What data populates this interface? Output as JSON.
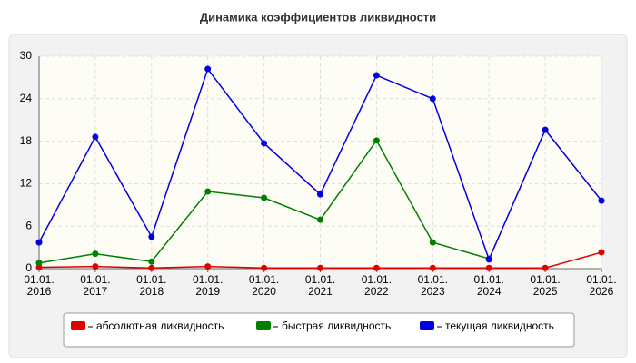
{
  "chart_data": {
    "type": "line",
    "title": "Динамика коэффициентов ликвидности",
    "categories": [
      "01.01. 2016",
      "01.01. 2017",
      "01.01. 2018",
      "01.01. 2019",
      "01.01. 2020",
      "01.01. 2021",
      "01.01. 2022",
      "01.01. 2023",
      "01.01. 2024",
      "01.01. 2025",
      "01.01. 2026"
    ],
    "series": [
      {
        "name": "абсолютная ликвидность",
        "color": "#e00000",
        "values": [
          0.2,
          0.3,
          0.1,
          0.3,
          0.1,
          0.1,
          0.1,
          0.1,
          0.1,
          0.1,
          2.3
        ]
      },
      {
        "name": "быстрая ликвидность",
        "color": "#008000",
        "values": [
          0.8,
          2.1,
          1.0,
          10.9,
          10.0,
          6.9,
          18.1,
          3.7,
          1.4,
          null,
          null
        ]
      },
      {
        "name": "текущая ликвидность",
        "color": "#0000e0",
        "values": [
          3.7,
          18.6,
          4.5,
          28.2,
          17.7,
          10.5,
          27.3,
          24.0,
          1.3,
          19.6,
          9.6
        ]
      }
    ],
    "ylim": [
      0,
      30
    ],
    "yticks": [
      0,
      6,
      12,
      18,
      24,
      30
    ],
    "grid": true
  }
}
